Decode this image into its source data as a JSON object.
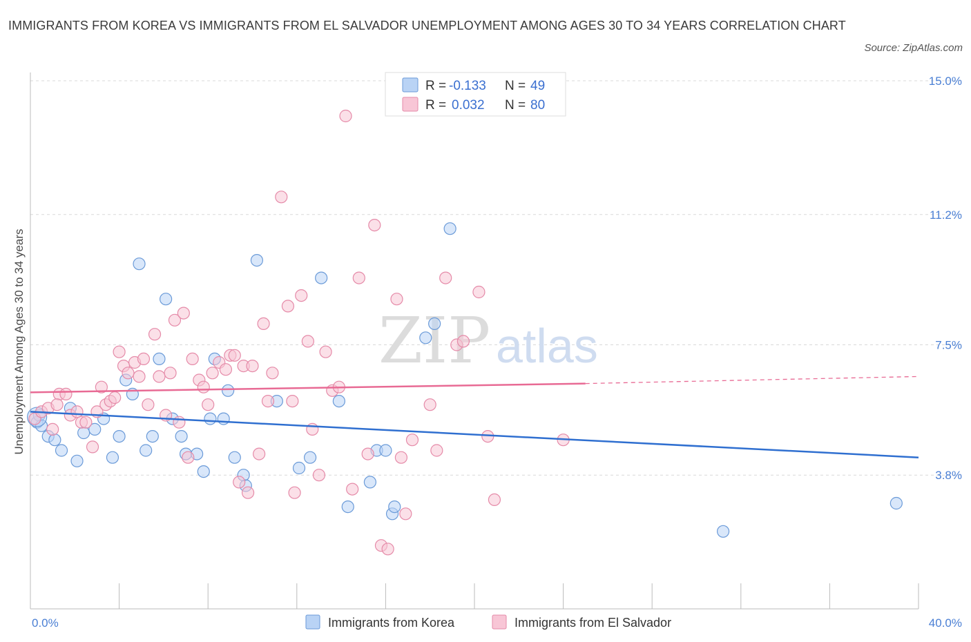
{
  "title": "IMMIGRANTS FROM KOREA VS IMMIGRANTS FROM EL SALVADOR UNEMPLOYMENT AMONG AGES 30 TO 34 YEARS CORRELATION CHART",
  "source": "Source: ZipAtlas.com",
  "watermark": {
    "zip": "ZIP",
    "atlas": "atlas"
  },
  "colors": {
    "korea_fill": "#b9d3f5",
    "korea_stroke": "#6a9ad8",
    "korea_line": "#2f6fd0",
    "elsalvador_fill": "#f8c6d6",
    "elsalvador_stroke": "#e58aa8",
    "elsalvador_line": "#e86a94",
    "grid": "#d8d8d8",
    "accent": "#4a7fd4"
  },
  "legend": {
    "rows": [
      {
        "r_label": "R =",
        "r_value": "-0.133",
        "n_label": "N =",
        "n_value": "49"
      },
      {
        "r_label": "R =",
        "r_value": "0.032",
        "n_label": "N =",
        "n_value": "80"
      }
    ]
  },
  "chart_data": {
    "type": "scatter",
    "title": "IMMIGRANTS FROM KOREA VS IMMIGRANTS FROM EL SALVADOR UNEMPLOYMENT AMONG AGES 30 TO 34 YEARS CORRELATION CHART",
    "xlabel": "",
    "ylabel": "Unemployment Among Ages 30 to 34 years",
    "xlim": [
      0,
      40
    ],
    "ylim": [
      0,
      15
    ],
    "x_tick_labels": [
      "0.0%",
      "40.0%"
    ],
    "y_ticks": [
      3.8,
      7.5,
      11.2,
      15.0
    ],
    "y_tick_labels": [
      "3.8%",
      "7.5%",
      "11.2%",
      "15.0%"
    ],
    "grid": "horizontal dashed",
    "legend_position": "top-center",
    "series": [
      {
        "name": "Immigrants from Korea",
        "R": -0.133,
        "N": 49,
        "trend": {
          "x": [
            0,
            40
          ],
          "y": [
            5.6,
            4.3
          ]
        },
        "points": [
          [
            0.3,
            5.3
          ],
          [
            0.4,
            5.5
          ],
          [
            0.8,
            4.9
          ],
          [
            1.1,
            4.8
          ],
          [
            1.4,
            4.5
          ],
          [
            1.8,
            5.7
          ],
          [
            2.1,
            4.2
          ],
          [
            2.4,
            5.0
          ],
          [
            2.9,
            5.1
          ],
          [
            3.3,
            5.4
          ],
          [
            3.7,
            4.3
          ],
          [
            4.0,
            4.9
          ],
          [
            4.3,
            6.5
          ],
          [
            4.6,
            6.1
          ],
          [
            4.9,
            9.8
          ],
          [
            5.2,
            4.5
          ],
          [
            5.5,
            4.9
          ],
          [
            5.8,
            7.1
          ],
          [
            6.1,
            8.8
          ],
          [
            6.4,
            5.4
          ],
          [
            6.8,
            4.9
          ],
          [
            7.0,
            4.4
          ],
          [
            7.5,
            4.4
          ],
          [
            7.8,
            3.9
          ],
          [
            8.1,
            5.4
          ],
          [
            8.3,
            7.1
          ],
          [
            8.7,
            5.4
          ],
          [
            8.9,
            6.2
          ],
          [
            9.2,
            4.3
          ],
          [
            9.6,
            3.8
          ],
          [
            9.7,
            3.5
          ],
          [
            10.2,
            9.9
          ],
          [
            11.1,
            5.9
          ],
          [
            12.1,
            4.0
          ],
          [
            12.6,
            4.3
          ],
          [
            13.1,
            9.4
          ],
          [
            13.9,
            5.9
          ],
          [
            14.3,
            2.9
          ],
          [
            15.3,
            3.6
          ],
          [
            15.6,
            4.5
          ],
          [
            16.0,
            4.5
          ],
          [
            16.3,
            2.7
          ],
          [
            16.4,
            2.9
          ],
          [
            17.8,
            7.7
          ],
          [
            18.2,
            8.1
          ],
          [
            18.9,
            10.8
          ],
          [
            31.2,
            2.2
          ],
          [
            39.0,
            3.0
          ],
          [
            0.5,
            5.2
          ]
        ]
      },
      {
        "name": "Immigrants from El Salvador",
        "R": 0.032,
        "N": 80,
        "trend": {
          "x": [
            0,
            25
          ],
          "y": [
            6.15,
            6.4
          ]
        },
        "trend_dashed": {
          "x": [
            25,
            40
          ],
          "y": [
            6.4,
            6.6
          ]
        },
        "points": [
          [
            0.2,
            5.4
          ],
          [
            0.5,
            5.6
          ],
          [
            0.8,
            5.7
          ],
          [
            1.0,
            5.1
          ],
          [
            1.3,
            6.1
          ],
          [
            1.6,
            6.1
          ],
          [
            1.8,
            5.5
          ],
          [
            2.1,
            5.6
          ],
          [
            2.3,
            5.3
          ],
          [
            2.5,
            5.3
          ],
          [
            2.8,
            4.6
          ],
          [
            3.0,
            5.6
          ],
          [
            3.2,
            6.3
          ],
          [
            3.4,
            5.8
          ],
          [
            3.6,
            5.9
          ],
          [
            3.8,
            6.0
          ],
          [
            4.0,
            7.3
          ],
          [
            4.2,
            6.9
          ],
          [
            4.4,
            6.7
          ],
          [
            4.7,
            7.0
          ],
          [
            4.9,
            6.6
          ],
          [
            5.1,
            7.1
          ],
          [
            5.3,
            5.8
          ],
          [
            5.6,
            7.8
          ],
          [
            5.8,
            6.6
          ],
          [
            6.1,
            5.5
          ],
          [
            6.3,
            6.7
          ],
          [
            6.5,
            8.2
          ],
          [
            6.7,
            5.3
          ],
          [
            6.9,
            8.4
          ],
          [
            7.1,
            4.3
          ],
          [
            7.3,
            7.1
          ],
          [
            7.6,
            6.5
          ],
          [
            7.8,
            6.3
          ],
          [
            8.0,
            5.8
          ],
          [
            8.2,
            6.7
          ],
          [
            8.5,
            7.0
          ],
          [
            8.8,
            6.8
          ],
          [
            9.0,
            7.2
          ],
          [
            9.2,
            7.2
          ],
          [
            9.4,
            3.6
          ],
          [
            9.6,
            6.9
          ],
          [
            9.8,
            3.3
          ],
          [
            10.0,
            6.9
          ],
          [
            10.3,
            4.4
          ],
          [
            10.5,
            8.1
          ],
          [
            10.7,
            5.9
          ],
          [
            10.9,
            6.7
          ],
          [
            11.3,
            11.7
          ],
          [
            11.6,
            8.6
          ],
          [
            11.9,
            3.3
          ],
          [
            12.2,
            8.9
          ],
          [
            12.5,
            7.6
          ],
          [
            12.7,
            5.1
          ],
          [
            13.0,
            3.8
          ],
          [
            13.3,
            7.3
          ],
          [
            13.6,
            6.2
          ],
          [
            13.9,
            6.3
          ],
          [
            14.2,
            14.0
          ],
          [
            14.5,
            3.4
          ],
          [
            14.8,
            9.4
          ],
          [
            15.2,
            4.4
          ],
          [
            15.5,
            10.9
          ],
          [
            15.8,
            1.8
          ],
          [
            16.1,
            1.7
          ],
          [
            16.5,
            8.8
          ],
          [
            16.9,
            2.7
          ],
          [
            17.2,
            4.8
          ],
          [
            18.0,
            5.8
          ],
          [
            18.3,
            4.5
          ],
          [
            18.7,
            9.4
          ],
          [
            19.2,
            7.5
          ],
          [
            19.5,
            7.6
          ],
          [
            20.2,
            9.0
          ],
          [
            20.6,
            4.9
          ],
          [
            20.9,
            3.1
          ],
          [
            24.0,
            4.8
          ],
          [
            11.8,
            5.9
          ],
          [
            16.7,
            4.3
          ],
          [
            1.2,
            5.8
          ]
        ]
      }
    ]
  },
  "bottom_legend": [
    "Immigrants from Korea",
    "Immigrants from El Salvador"
  ]
}
